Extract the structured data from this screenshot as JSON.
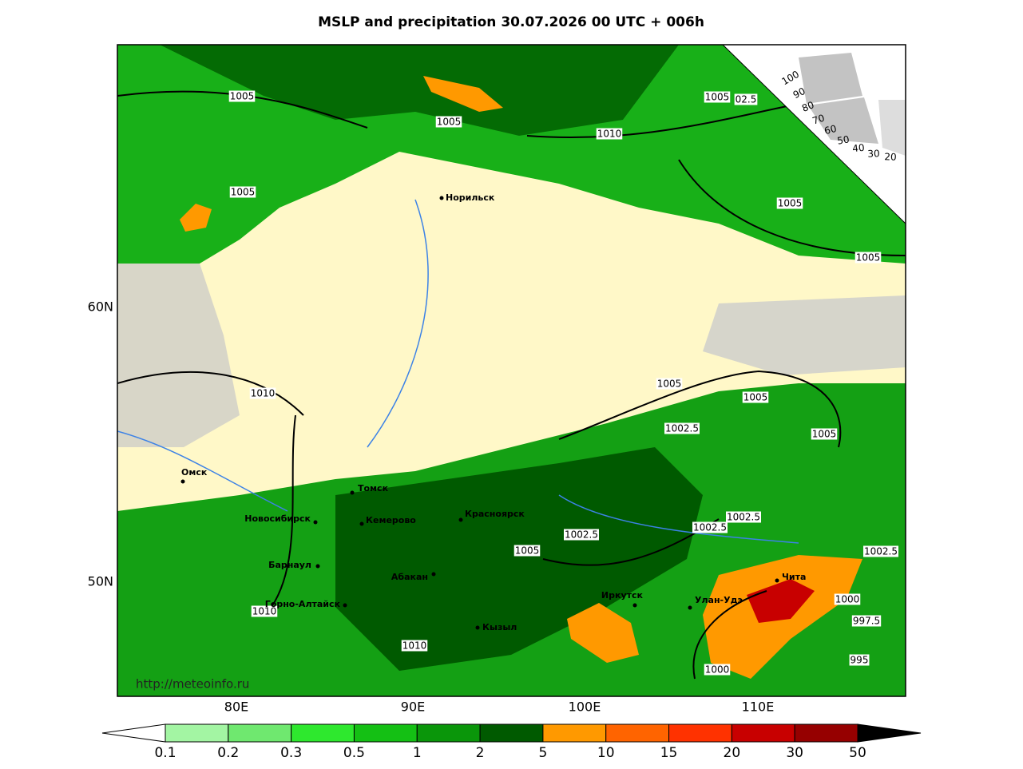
{
  "title": "MSLP and precipitation 30.07.2026 00 UTC + 006h",
  "lat_labels": [
    "60N",
    "50N"
  ],
  "lon_labels": [
    "80E",
    "90E",
    "100E",
    "110E"
  ],
  "cities": [
    "Норильск",
    "Омск",
    "Томск",
    "Новосибирск",
    "Кемерово",
    "Красноярск",
    "Барнаул",
    "Абакан",
    "Горно-Алтайск",
    "Иркутск",
    "Улан-Удэ",
    "Чита",
    "Кызыл"
  ],
  "isobar_labels": [
    "1005",
    "1005",
    "1010",
    "1005",
    "02.5",
    "1005",
    "1005",
    "1005",
    "1010",
    "1005",
    "1005",
    "1002.5",
    "1005",
    "1002.5",
    "1002.5",
    "1002.5",
    "1005",
    "1002.5",
    "1000",
    "997.5",
    "1010",
    "1010",
    "995",
    "1000"
  ],
  "cloud_scale": [
    "100",
    "90",
    "80",
    "70",
    "60",
    "50",
    "40",
    "30",
    "20"
  ],
  "url": "http://meteoinfo.ru",
  "colorbar": {
    "ticks": [
      "0.1",
      "0.2",
      "0.3",
      "0.5",
      "1",
      "2",
      "5",
      "10",
      "15",
      "20",
      "30",
      "50"
    ],
    "colors": [
      "#a3f5a3",
      "#6fe86f",
      "#2ee82e",
      "#14c014",
      "#0a960a",
      "#005a00",
      "#ff9900",
      "#ff6400",
      "#ff3200",
      "#c80000",
      "#960000"
    ]
  }
}
